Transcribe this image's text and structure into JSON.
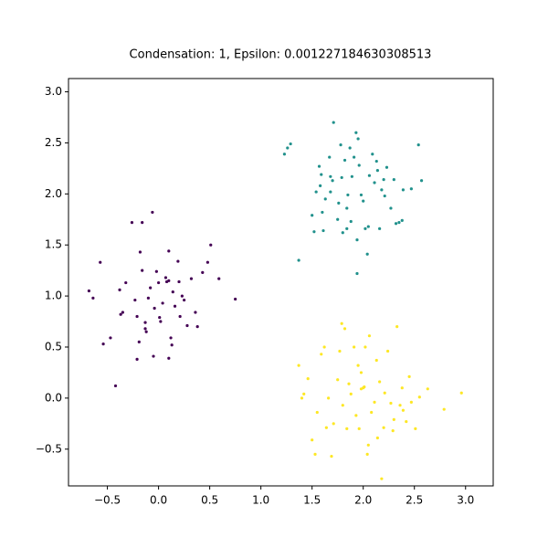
{
  "chart_data": {
    "type": "scatter",
    "title": "Condensation: 1, Epsilon: 0.001227184630308513",
    "xlim": [
      -0.88,
      3.27
    ],
    "ylim": [
      -0.86,
      3.13
    ],
    "xticks": [
      {
        "value": -0.5,
        "label": "−0.5"
      },
      {
        "value": 0,
        "label": "0.0"
      },
      0.5,
      {
        "value": 1,
        "label": "1.0"
      },
      1.5,
      {
        "value": 2,
        "label": "2.0"
      },
      2.5,
      {
        "value": 3,
        "label": "3.0"
      }
    ],
    "yticks": [
      {
        "value": -0.5,
        "label": "−0.5"
      },
      {
        "value": 0,
        "label": "0.0"
      },
      0.5,
      {
        "value": 1,
        "label": "1.0"
      },
      1.5,
      {
        "value": 2,
        "label": "2.0"
      },
      2.5,
      {
        "value": 3,
        "label": "3.0"
      }
    ],
    "grid": false,
    "series": [
      {
        "color": "#440154",
        "x": [
          -0.68,
          -0.64,
          -0.57,
          -0.54,
          -0.47,
          -0.42,
          -0.38,
          -0.37,
          -0.35,
          -0.32,
          -0.26,
          -0.23,
          -0.21,
          -0.19,
          -0.18,
          -0.16,
          -0.16,
          -0.13,
          -0.12,
          -0.1,
          -0.08,
          -0.06,
          -0.05,
          -0.04,
          -0.02,
          0,
          0.01,
          0.04,
          0.07,
          0.08,
          0.1,
          0.1,
          0.12,
          0.13,
          0.14,
          0.16,
          0.19,
          0.21,
          0.23,
          0.25,
          0.28,
          0.32,
          0.36,
          0.38,
          0.43,
          0.48,
          0.51,
          0.59,
          0.75,
          -0.13,
          -0.21,
          0.2,
          0.1,
          0.02
        ],
        "y": [
          1.05,
          0.98,
          1.33,
          0.53,
          0.59,
          0.12,
          1.06,
          0.82,
          0.84,
          1.13,
          1.72,
          0.96,
          0.38,
          0.55,
          1.43,
          1.72,
          1.25,
          0.68,
          0.65,
          0.98,
          1.08,
          1.82,
          0.41,
          0.88,
          1.24,
          1.13,
          0.79,
          0.93,
          1.18,
          1.14,
          1.15,
          1.44,
          0.59,
          0.52,
          1.04,
          0.9,
          1.34,
          0.8,
          1,
          0.96,
          0.71,
          1.17,
          0.84,
          0.7,
          1.23,
          1.33,
          1.5,
          1.17,
          0.97,
          0.74,
          0.8,
          1.14,
          0.39,
          0.75
        ]
      },
      {
        "color": "#21918c",
        "x": [
          1.23,
          1.26,
          1.29,
          1.37,
          1.5,
          1.52,
          1.54,
          1.57,
          1.58,
          1.59,
          1.6,
          1.61,
          1.63,
          1.67,
          1.68,
          1.7,
          1.71,
          1.75,
          1.76,
          1.78,
          1.79,
          1.8,
          1.82,
          1.84,
          1.85,
          1.87,
          1.88,
          1.89,
          1.91,
          1.93,
          1.94,
          1.95,
          1.96,
          1.98,
          2,
          2.02,
          2.04,
          2.05,
          2.06,
          2.09,
          2.11,
          2.13,
          2.14,
          2.16,
          2.18,
          2.2,
          2.21,
          2.23,
          2.27,
          2.3,
          2.32,
          2.35,
          2.38,
          2.39,
          2.47,
          2.54,
          2.57,
          1.94,
          1.84,
          1.68
        ],
        "y": [
          2.39,
          2.45,
          2.49,
          1.35,
          1.79,
          1.63,
          2.02,
          2.27,
          2.08,
          2.19,
          1.82,
          1.64,
          1.95,
          2.36,
          2.02,
          2.13,
          2.7,
          1.75,
          1.91,
          2.48,
          2.16,
          1.62,
          2.33,
          1.86,
          1.99,
          2.45,
          1.73,
          2.17,
          2.36,
          2.6,
          1.22,
          2.54,
          2.28,
          1.99,
          1.93,
          1.66,
          1.41,
          1.68,
          2.18,
          2.39,
          2.11,
          2.32,
          2.23,
          1.66,
          2.04,
          2.14,
          1.98,
          2.26,
          1.86,
          2.14,
          1.71,
          1.72,
          1.74,
          2.04,
          2.05,
          2.48,
          2.13,
          1.55,
          1.66,
          2.17
        ]
      },
      {
        "color": "#fde725",
        "x": [
          1.37,
          1.4,
          1.42,
          1.46,
          1.5,
          1.53,
          1.55,
          1.59,
          1.62,
          1.64,
          1.66,
          1.69,
          1.71,
          1.75,
          1.77,
          1.79,
          1.8,
          1.82,
          1.84,
          1.86,
          1.88,
          1.91,
          1.93,
          1.95,
          1.96,
          1.98,
          2,
          2.02,
          2.04,
          2.05,
          2.06,
          2.08,
          2.11,
          2.13,
          2.14,
          2.16,
          2.18,
          2.2,
          2.21,
          2.24,
          2.27,
          2.29,
          2.3,
          2.33,
          2.36,
          2.38,
          2.39,
          2.42,
          2.45,
          2.47,
          2.51,
          2.55,
          2.63,
          2.79,
          2.96,
          1.98,
          2.01
        ],
        "y": [
          0.32,
          0,
          0.04,
          0.19,
          -0.41,
          -0.55,
          -0.14,
          0.43,
          0.5,
          -0.29,
          0,
          -0.57,
          -0.25,
          0.18,
          0.46,
          0.73,
          -0.07,
          0.68,
          -0.3,
          0.14,
          0.04,
          0.5,
          -0.17,
          0.32,
          -0.3,
          0.25,
          0.1,
          0.5,
          -0.55,
          -0.46,
          0.61,
          -0.14,
          -0.04,
          0.37,
          -0.39,
          0.16,
          -0.79,
          -0.29,
          0.05,
          0.46,
          -0.05,
          -0.32,
          -0.21,
          0.7,
          -0.07,
          0.1,
          -0.12,
          -0.23,
          0.21,
          -0.04,
          -0.3,
          0.01,
          0.09,
          -0.11,
          0.05,
          0.09,
          0.11
        ]
      }
    ]
  }
}
